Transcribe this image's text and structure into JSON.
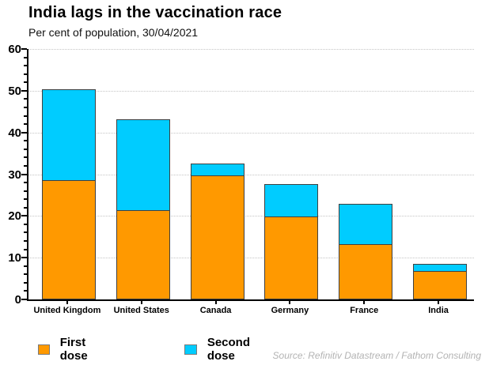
{
  "header": {
    "title": "India lags in the vaccination race",
    "subtitle": "Per cent of population, 30/04/2021"
  },
  "source": "Source: Refinitiv Datastream / Fathom Consulting",
  "legend": [
    {
      "label": "First dose",
      "color": "#FF9900"
    },
    {
      "label": "Second dose",
      "color": "#00CCFF"
    }
  ],
  "colors": {
    "first_dose": "#FF9900",
    "second_dose": "#00CCFF",
    "bar_border": "#404040",
    "gridline": "#c4c4c4",
    "axis": "#000000",
    "source_text": "#b3b3b3"
  },
  "chart_data": {
    "type": "bar",
    "stacked": true,
    "title": "India lags in the vaccination race",
    "subtitle": "Per cent of population, 30/04/2021",
    "categories": [
      "United Kingdom",
      "United States",
      "Canada",
      "Germany",
      "France",
      "India"
    ],
    "series": [
      {
        "name": "First dose",
        "color": "#FF9900",
        "values": [
          28.6,
          21.3,
          29.8,
          19.8,
          13.3,
          6.9
        ]
      },
      {
        "name": "Second dose",
        "color": "#00CCFF",
        "values": [
          22.0,
          22.0,
          3.1,
          7.9,
          9.9,
          1.9
        ]
      }
    ],
    "stack_totals": [
      50.6,
      43.3,
      32.9,
      27.7,
      23.2,
      8.8
    ],
    "xlabel": "",
    "ylabel": "Per cent of population",
    "ylim": [
      0,
      60
    ],
    "yticks": [
      0,
      10,
      20,
      30,
      40,
      50,
      60
    ],
    "y_minor_tick_step": 2,
    "grid": "horizontal-dotted",
    "legend_position": "bottom-left"
  }
}
